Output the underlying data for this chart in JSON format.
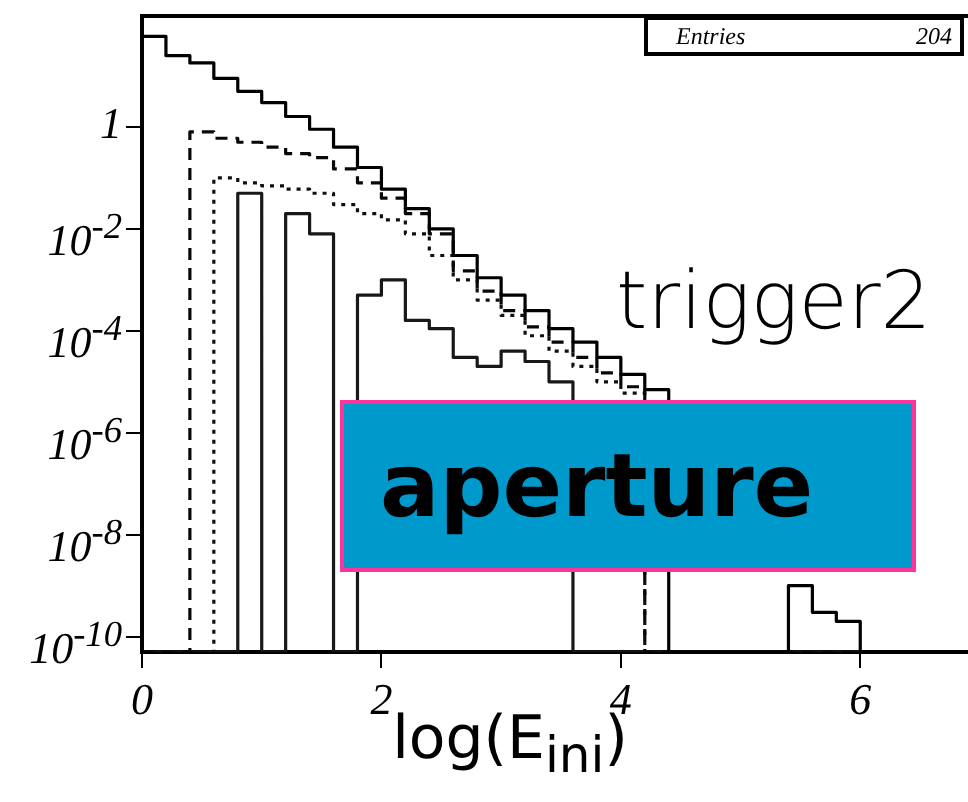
{
  "chart_data": {
    "type": "histogram",
    "xlabel": "log(E$_{ini}$)",
    "annotations": [
      "Entries",
      "204",
      "trigger2",
      "aperture"
    ],
    "bins": [
      0,
      0.2,
      0.4,
      0.6,
      0.8,
      1.0,
      1.2,
      1.4,
      1.6,
      1.8,
      2.0,
      2.2,
      2.4,
      2.6,
      2.8,
      3.0,
      3.2,
      3.4,
      3.6,
      3.8,
      4.0,
      4.2,
      4.4,
      4.6,
      4.8,
      5.0,
      5.2,
      5.4,
      5.6,
      5.8,
      6.0
    ],
    "series": [
      {
        "color": "#000000",
        "line_style": "solid",
        "values": [
          60,
          25,
          18,
          9,
          5,
          3,
          1.6,
          0.9,
          0.4,
          0.16,
          0.06,
          0.025,
          0.01,
          0.003,
          0.0011,
          0.0005,
          0.00025,
          0.00011,
          6e-05,
          3e-05,
          1.4e-05,
          7e-06,
          null,
          null,
          null,
          null,
          null,
          1e-09,
          3e-10,
          2e-10
        ]
      },
      {
        "color": "#080808",
        "line_style": "dashed",
        "values": [
          null,
          null,
          0.8,
          0.6,
          0.5,
          0.4,
          0.3,
          0.25,
          0.15,
          0.08,
          0.04,
          0.02,
          0.008,
          0.0015,
          0.0006,
          0.00025,
          0.00012,
          6e-05,
          3e-05,
          1.5e-05,
          8e-06,
          null,
          null,
          null,
          null,
          null,
          null,
          null,
          null,
          null
        ]
      },
      {
        "color": "#101010",
        "line_style": "dotted",
        "values": [
          null,
          null,
          null,
          0.1,
          0.08,
          0.07,
          0.06,
          0.05,
          0.03,
          0.02,
          0.015,
          0.008,
          0.003,
          0.001,
          0.0004,
          0.0002,
          8e-05,
          4e-05,
          2e-05,
          1e-05,
          6e-06,
          null,
          null,
          null,
          null,
          null,
          null,
          null,
          null,
          null
        ]
      },
      {
        "color": "#181818",
        "line_style": "solid",
        "values": [
          null,
          null,
          null,
          null,
          0.05,
          null,
          0.02,
          0.008,
          null,
          0.0005,
          0.001,
          0.00016,
          0.00011,
          3e-05,
          2e-05,
          4e-05,
          2.5e-05,
          1e-05,
          null,
          null,
          null,
          null,
          null,
          null,
          null,
          null,
          null,
          null,
          null,
          null
        ]
      }
    ],
    "xlim": [
      0,
      6.9
    ],
    "xticks": [
      0,
      2,
      4,
      6
    ],
    "ylim": [
      5e-11,
      150
    ],
    "yticks": [
      1,
      {
        "value": 0.01,
        "label": "10$^{-2}$"
      },
      {
        "value": 0.0001,
        "label": "10$^{-4}$"
      },
      {
        "value": 1e-06,
        "label": "10$^{-6}$"
      },
      {
        "value": 1e-08,
        "label": "10$^{-8}$"
      },
      {
        "value": 1e-10,
        "label": "10$^{-10}$"
      }
    ],
    "log": "y",
    "grid": false,
    "legend": false,
    "marker": "none"
  }
}
